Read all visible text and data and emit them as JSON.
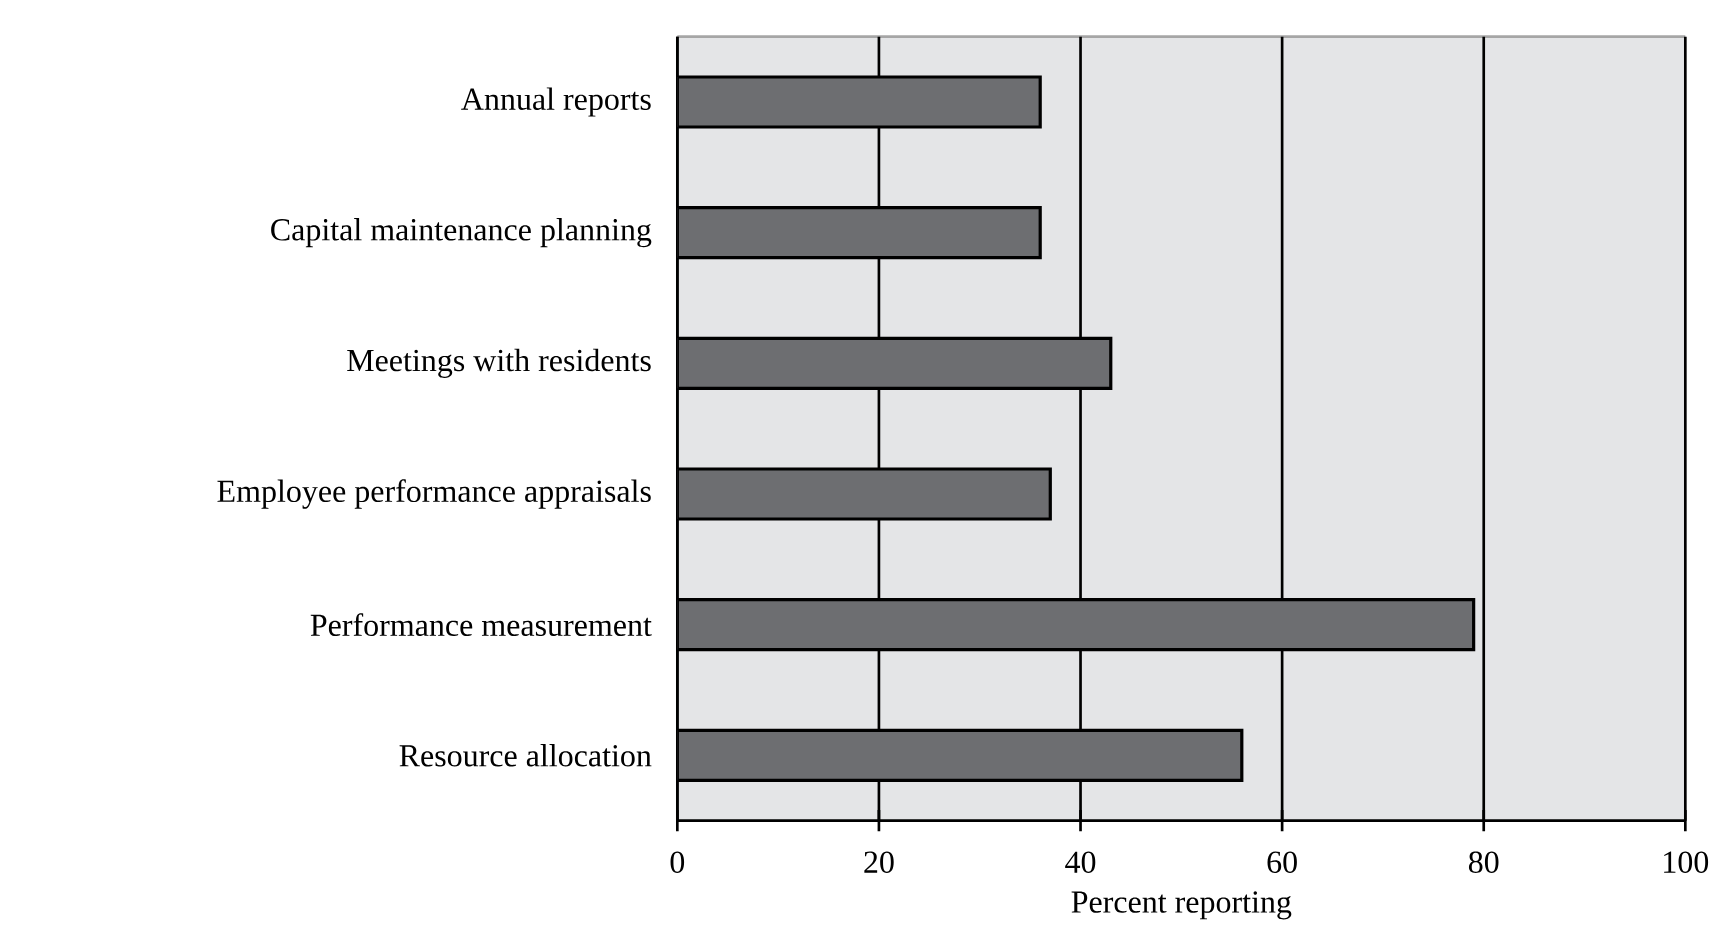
{
  "chart_data": {
    "type": "bar",
    "orientation": "horizontal",
    "xlabel": "Percent reporting",
    "categories": [
      "Annual reports",
      "Capital maintenance planning",
      "Meetings with residents",
      "Employee performance appraisals",
      "Performance measurement",
      "Resource allocation"
    ],
    "values": [
      36,
      36,
      43,
      37,
      79,
      56
    ],
    "color": "#6d6e71",
    "xlim": [
      0,
      100
    ],
    "xticks": [
      0,
      20,
      40,
      60,
      80,
      100
    ],
    "grid": "x"
  }
}
